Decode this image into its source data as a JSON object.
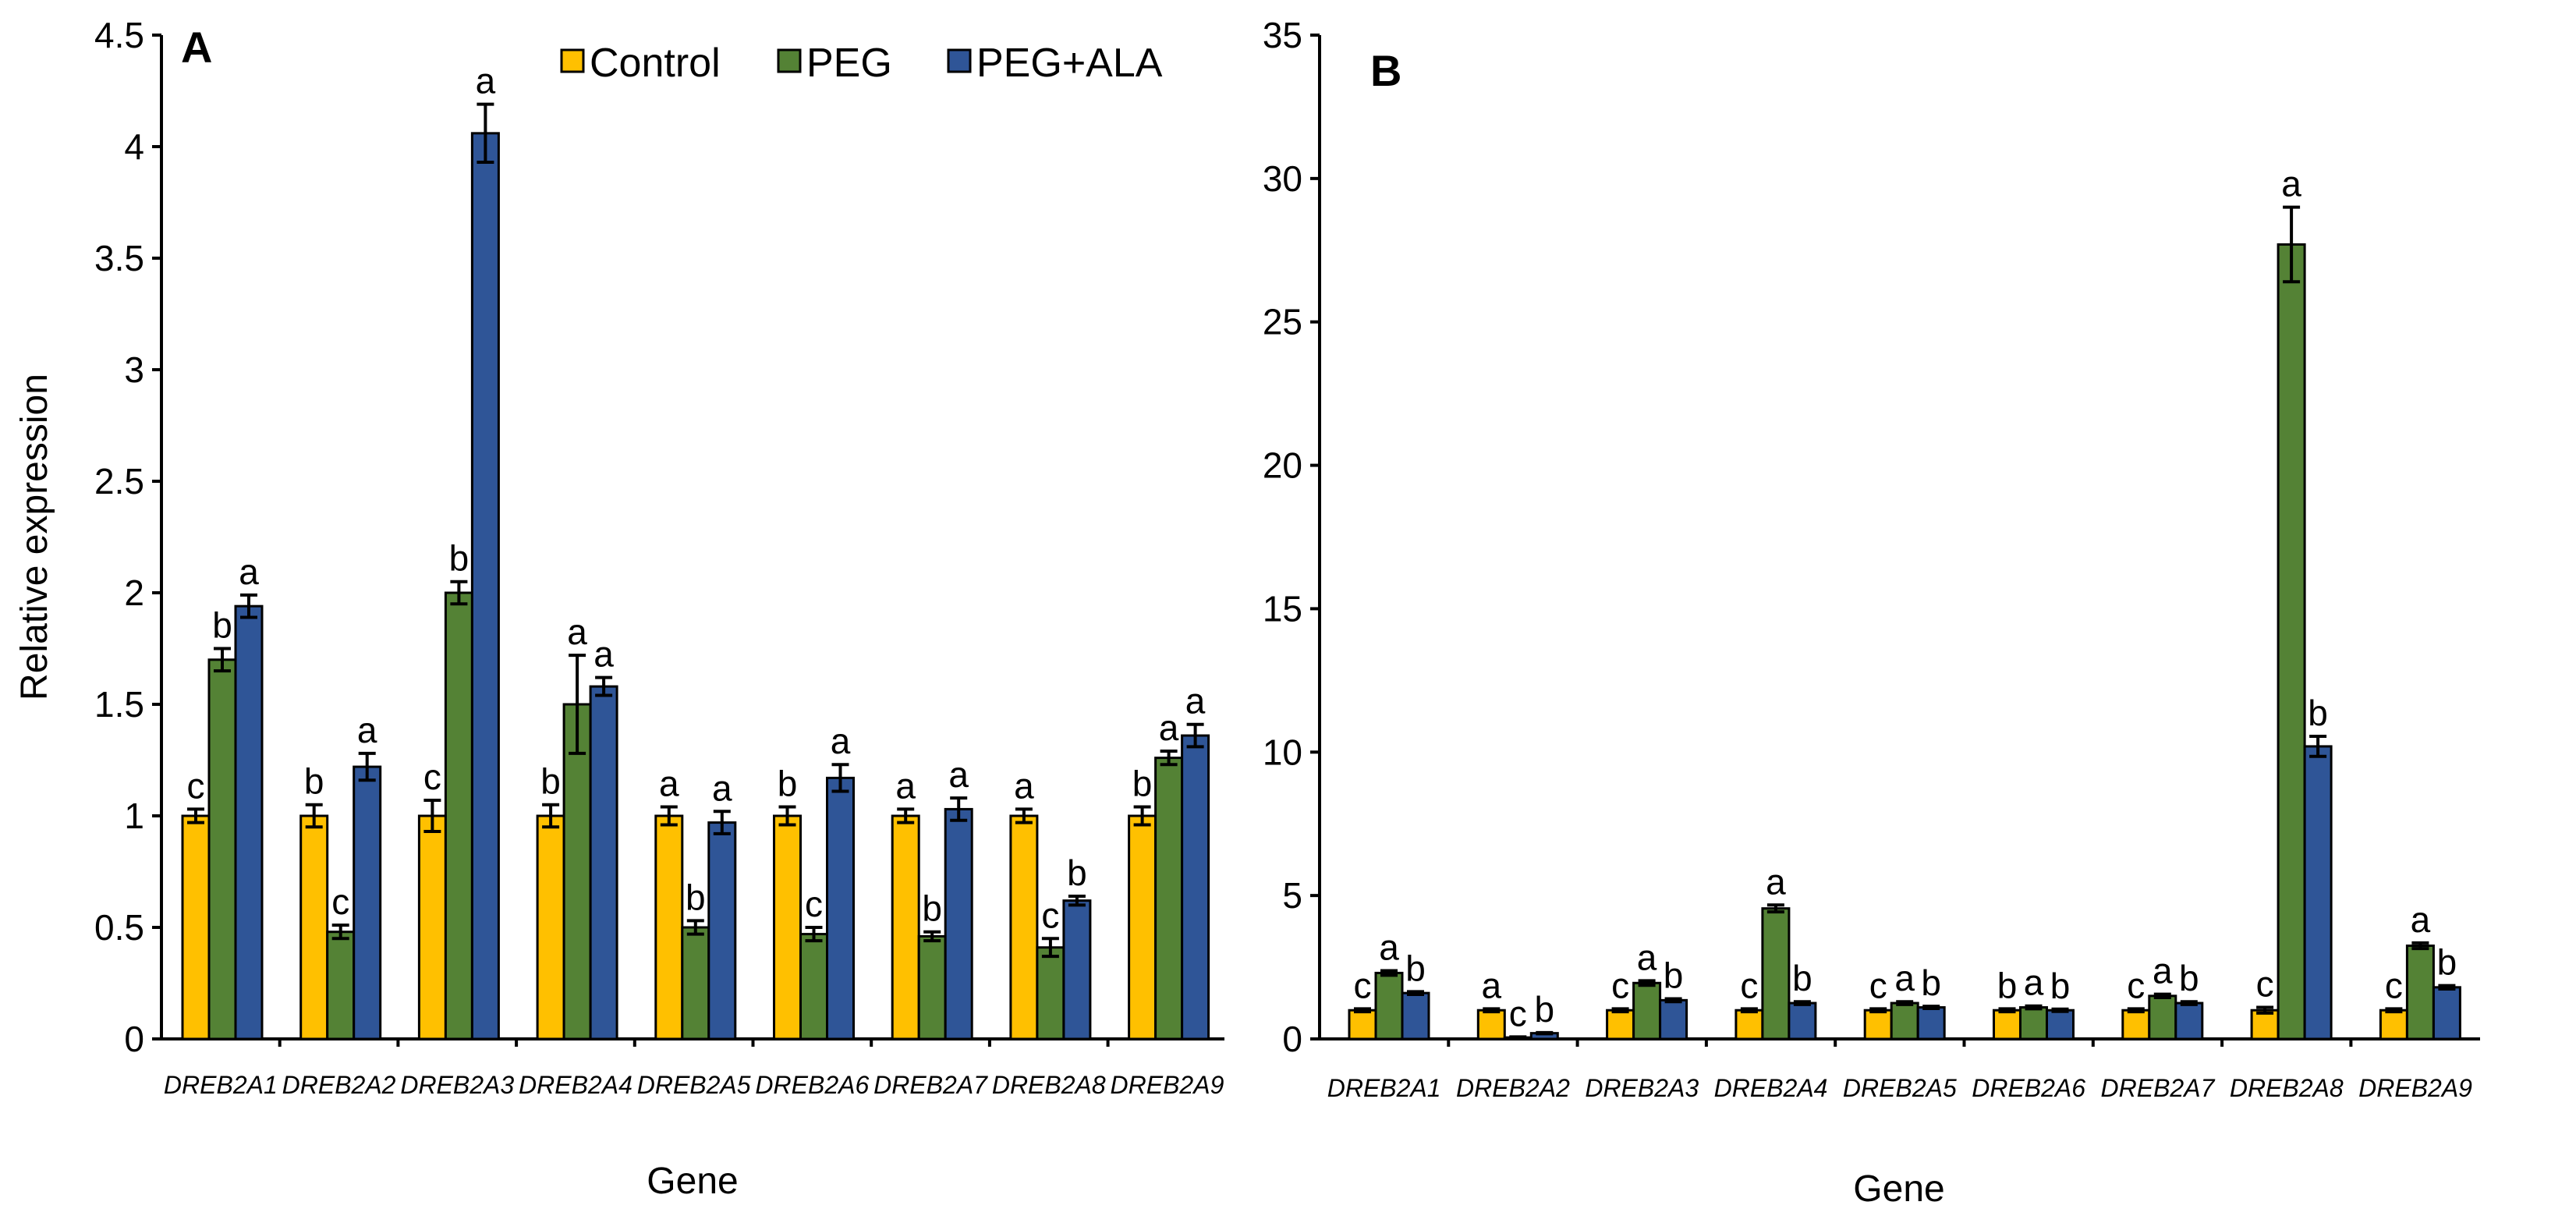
{
  "colors": {
    "Control": "#FFC000",
    "PEG": "#548235",
    "PEG+ALA": "#2F5597"
  },
  "chart_data": [
    {
      "panel": "A",
      "type": "bar",
      "xlabel": "Gene",
      "ylabel": "Relative expression",
      "ylim": [
        0,
        4.5
      ],
      "yticks": [
        0,
        0.5,
        1,
        1.5,
        2,
        2.5,
        3,
        3.5,
        4,
        4.5
      ],
      "ytick_labels": [
        "0",
        "0.5",
        "1",
        "1.5",
        "2",
        "2.5",
        "3",
        "3.5",
        "4",
        "4.5"
      ],
      "legend": [
        "Control",
        "PEG",
        "PEG+ALA"
      ],
      "categories": [
        "DREB2A1",
        "DREB2A2",
        "DREB2A3",
        "DREB2A4",
        "DREB2A5",
        "DREB2A6",
        "DREB2A7",
        "DREB2A8",
        "DREB2A9"
      ],
      "series": [
        {
          "name": "Control",
          "values": [
            1.0,
            1.0,
            1.0,
            1.0,
            1.0,
            1.0,
            1.0,
            1.0,
            1.0
          ],
          "errors": [
            0.03,
            0.05,
            0.07,
            0.05,
            0.04,
            0.04,
            0.03,
            0.03,
            0.04
          ],
          "labels": [
            "c",
            "b",
            "c",
            "b",
            "a",
            "b",
            "a",
            "a",
            "b"
          ]
        },
        {
          "name": "PEG",
          "values": [
            1.7,
            0.48,
            2.0,
            1.5,
            0.5,
            0.47,
            0.46,
            0.41,
            1.26
          ],
          "errors": [
            0.05,
            0.03,
            0.05,
            0.22,
            0.03,
            0.03,
            0.02,
            0.04,
            0.03
          ],
          "labels": [
            "b",
            "c",
            "b",
            "a",
            "b",
            "c",
            "b",
            "c",
            "a"
          ]
        },
        {
          "name": "PEG+ALA",
          "values": [
            1.94,
            1.22,
            4.06,
            1.58,
            0.97,
            1.17,
            1.03,
            0.62,
            1.36
          ],
          "errors": [
            0.05,
            0.06,
            0.13,
            0.04,
            0.05,
            0.06,
            0.05,
            0.02,
            0.05
          ],
          "labels": [
            "a",
            "a",
            "a",
            "a",
            "a",
            "a",
            "a",
            "b",
            "a"
          ]
        }
      ]
    },
    {
      "panel": "B",
      "type": "bar",
      "xlabel": "Gene",
      "ylabel": "",
      "ylim": [
        0,
        35
      ],
      "yticks": [
        0,
        5,
        10,
        15,
        20,
        25,
        30,
        35
      ],
      "ytick_labels": [
        "0",
        "5",
        "10",
        "15",
        "20",
        "25",
        "30",
        "35"
      ],
      "categories": [
        "DREB2A1",
        "DREB2A2",
        "DREB2A3",
        "DREB2A4",
        "DREB2A5",
        "DREB2A6",
        "DREB2A7",
        "DREB2A8",
        "DREB2A9"
      ],
      "series": [
        {
          "name": "Control",
          "values": [
            1.0,
            1.0,
            1.0,
            1.0,
            1.0,
            1.0,
            1.0,
            1.0,
            1.0
          ],
          "errors": [
            0.05,
            0.05,
            0.05,
            0.05,
            0.05,
            0.05,
            0.05,
            0.1,
            0.05
          ],
          "labels": [
            "c",
            "a",
            "c",
            "c",
            "c",
            "b",
            "c",
            "c",
            "c"
          ]
        },
        {
          "name": "PEG",
          "values": [
            2.3,
            0.05,
            1.95,
            4.55,
            1.25,
            1.1,
            1.5,
            27.7,
            3.25
          ],
          "errors": [
            0.08,
            0.02,
            0.08,
            0.12,
            0.05,
            0.05,
            0.06,
            1.3,
            0.1
          ],
          "labels": [
            "a",
            "c",
            "a",
            "a",
            "a",
            "a",
            "a",
            "a",
            "a"
          ]
        },
        {
          "name": "PEG+ALA",
          "values": [
            1.6,
            0.2,
            1.35,
            1.25,
            1.1,
            1.0,
            1.25,
            10.2,
            1.8
          ],
          "errors": [
            0.05,
            0.02,
            0.05,
            0.05,
            0.04,
            0.04,
            0.05,
            0.35,
            0.06
          ],
          "labels": [
            "b",
            "b",
            "b",
            "b",
            "b",
            "b",
            "b",
            "b",
            "b"
          ]
        }
      ]
    }
  ]
}
